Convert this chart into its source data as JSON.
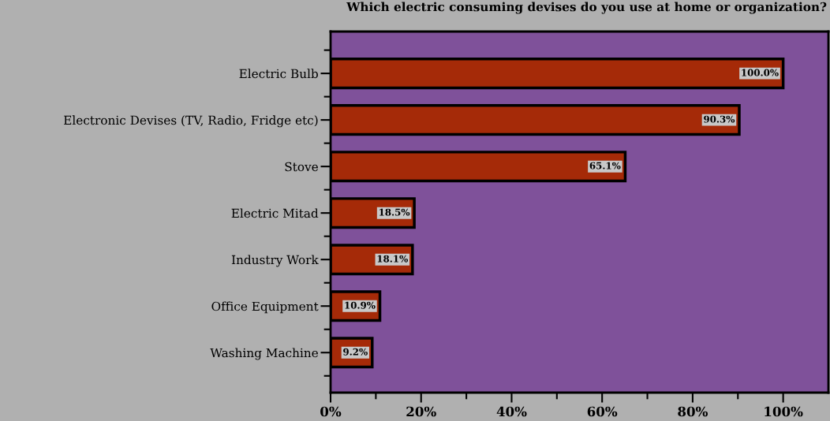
{
  "chart_data": {
    "type": "bar",
    "orientation": "horizontal",
    "title": "Which electric consuming devises do you use at home or organization?",
    "categories": [
      "Electric Bulb",
      "Electronic Devises (TV, Radio, Fridge etc)",
      "Stove",
      "Electric Mitad",
      "Industry Work",
      "Office Equipment",
      "Washing Machine"
    ],
    "values": [
      100.0,
      90.3,
      65.1,
      18.5,
      18.1,
      10.9,
      9.2
    ],
    "value_labels": [
      "100.0%",
      "90.3%",
      "65.1%",
      "18.5%",
      "18.1%",
      "10.9%",
      "9.2%"
    ],
    "color": "#a52a08",
    "xlim": [
      0,
      110
    ],
    "xticks": [
      {
        "value": 0,
        "label": "0%"
      },
      {
        "value": 20,
        "label": "20%"
      },
      {
        "value": 40,
        "label": "40%"
      },
      {
        "value": 60,
        "label": "60%"
      },
      {
        "value": 80,
        "label": "80%"
      },
      {
        "value": 100,
        "label": "100%"
      }
    ],
    "grid": false,
    "legend": false
  }
}
